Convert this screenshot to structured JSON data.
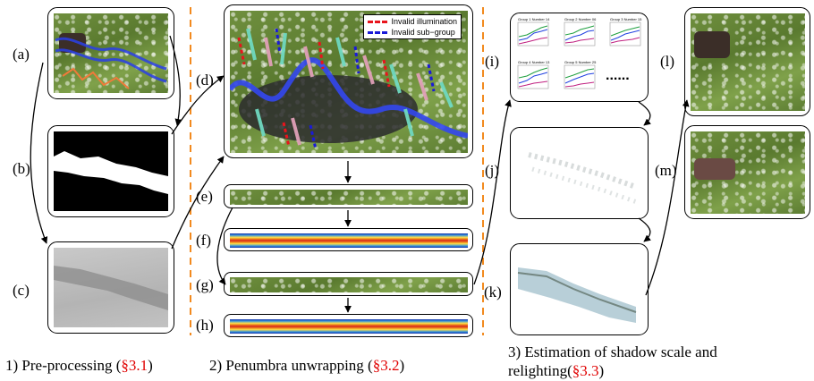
{
  "labels": {
    "a": "(a)",
    "b": "(b)",
    "c": "(c)",
    "d": "(d)",
    "e": "(e)",
    "f": "(f)",
    "g": "(g)",
    "h": "(h)",
    "i": "(i)",
    "j": "(j)",
    "k": "(k)",
    "l": "(l)",
    "m": "(m)"
  },
  "legend": {
    "invalid_illumination": "Invalid illumination",
    "invalid_subgroup": "Invalid sub−group",
    "illumination_color": "#e8141c",
    "subgroup_color": "#1a1ad8"
  },
  "plots_i": {
    "titles": [
      "Group 1 Number 14",
      "Group 2 Number 06",
      "Group 3 Number 15",
      "Group 4 Number 13",
      "Group 5 Number 25"
    ],
    "ellipsis": "......"
  },
  "captions": {
    "c1_text": "1) Pre-processing (",
    "c1_ref": "§3.1",
    "c1_end": ")",
    "c2_text": "2) Penumbra unwrapping (",
    "c2_ref": "§3.2",
    "c2_end": ")",
    "c3_line1": "3) Estimation of shadow scale and",
    "c3_line2_text": "relighting(",
    "c3_line2_ref": "§3.3",
    "c3_line2_end": ")"
  },
  "colors": {
    "divider": "#f28a1e",
    "reference": "#e00000"
  }
}
